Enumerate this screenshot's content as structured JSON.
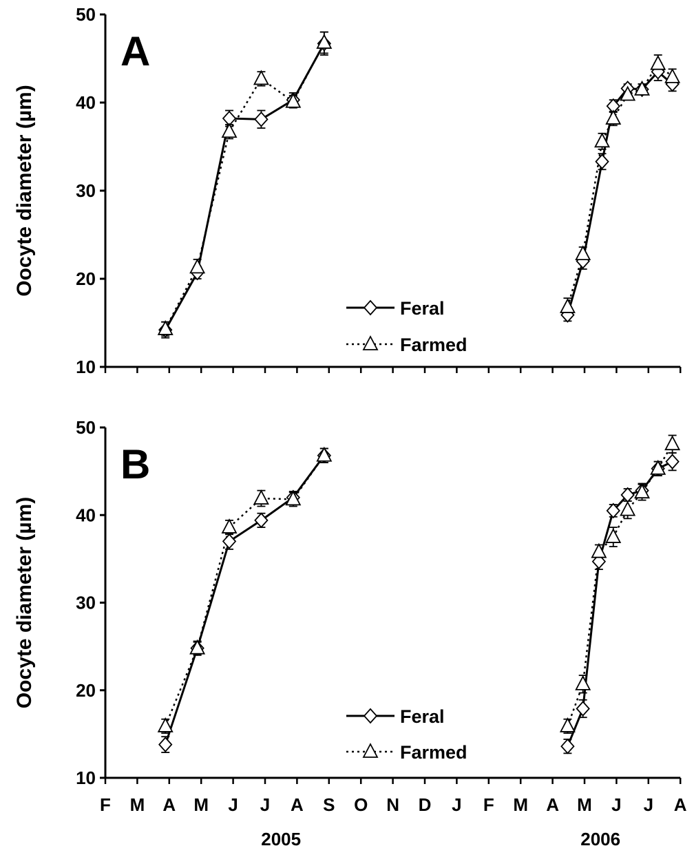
{
  "chart_data": [
    {
      "type": "line",
      "panel": "A",
      "ylabel": "Oocyte diameter (µm)",
      "ylim": [
        10,
        50
      ],
      "yticks": [
        "10",
        "20",
        "30",
        "40",
        "50"
      ],
      "month_labels": [
        "F",
        "M",
        "A",
        "M",
        "J",
        "J",
        "A",
        "S",
        "O",
        "N",
        "D",
        "J",
        "F",
        "M",
        "A",
        "M",
        "J",
        "J",
        "A"
      ],
      "year_labels": [
        {
          "label": "2005",
          "month_index": 5.5
        },
        {
          "label": "2006",
          "month_index": 15.5
        }
      ],
      "legend": {
        "placement": "center-bottom",
        "entries": [
          "Feral",
          "Farmed"
        ]
      },
      "series": [
        {
          "name": "Feral",
          "style": "solid",
          "marker": "diamond",
          "segments": [
            [
              [
                1.88,
                14.2
              ],
              [
                2.88,
                20.7
              ],
              [
                3.88,
                38.2
              ],
              [
                4.88,
                38.1
              ],
              [
                5.88,
                40.3
              ],
              [
                6.85,
                46.7
              ]
            ],
            [
              [
                14.47,
                15.9
              ],
              [
                14.95,
                22.0
              ],
              [
                15.55,
                33.3
              ],
              [
                15.9,
                39.6
              ],
              [
                16.35,
                41.6
              ],
              [
                16.8,
                41.5
              ],
              [
                17.3,
                43.5
              ],
              [
                17.75,
                42.1
              ]
            ]
          ],
          "errors": [
            [
              0.9,
              0.7,
              0.9,
              1.0,
              0.8,
              1.3
            ],
            [
              0.7,
              0.9,
              0.9,
              0.7,
              0.5,
              0.6,
              1.0,
              0.8
            ]
          ]
        },
        {
          "name": "Farmed",
          "style": "dotted",
          "marker": "triangle",
          "segments": [
            [
              [
                1.88,
                14.3
              ],
              [
                2.88,
                21.3
              ],
              [
                3.88,
                36.7
              ],
              [
                4.88,
                42.7
              ],
              [
                5.88,
                40.1
              ],
              [
                6.85,
                46.8
              ]
            ],
            [
              [
                14.47,
                16.8
              ],
              [
                14.95,
                22.8
              ],
              [
                15.55,
                35.6
              ],
              [
                15.9,
                38.2
              ],
              [
                16.35,
                40.9
              ],
              [
                16.8,
                41.5
              ],
              [
                17.3,
                44.4
              ],
              [
                17.75,
                42.9
              ]
            ]
          ],
          "errors": [
            [
              0.8,
              0.9,
              0.8,
              0.8,
              0.7,
              1.2
            ],
            [
              1.0,
              0.8,
              0.9,
              0.8,
              0.6,
              0.6,
              1.0,
              0.9
            ]
          ]
        }
      ]
    },
    {
      "type": "line",
      "panel": "B",
      "ylabel": "Oocyte diameter (µm)",
      "ylim": [
        10,
        50
      ],
      "yticks": [
        "10",
        "20",
        "30",
        "40",
        "50"
      ],
      "month_labels": [
        "F",
        "M",
        "A",
        "M",
        "J",
        "J",
        "A",
        "S",
        "O",
        "N",
        "D",
        "J",
        "F",
        "M",
        "A",
        "M",
        "J",
        "J",
        "A"
      ],
      "year_labels": [
        {
          "label": "2005",
          "month_index": 5.5
        },
        {
          "label": "2006",
          "month_index": 15.5
        }
      ],
      "legend": {
        "placement": "center-bottom",
        "entries": [
          "Feral",
          "Farmed"
        ]
      },
      "series": [
        {
          "name": "Feral",
          "style": "solid",
          "marker": "diamond",
          "segments": [
            [
              [
                1.88,
                13.8
              ],
              [
                2.88,
                24.8
              ],
              [
                3.88,
                37.0
              ],
              [
                4.88,
                39.4
              ],
              [
                5.88,
                42.0
              ],
              [
                6.85,
                46.8
              ]
            ],
            [
              [
                14.47,
                13.6
              ],
              [
                14.95,
                17.9
              ],
              [
                15.45,
                34.7
              ],
              [
                15.9,
                40.5
              ],
              [
                16.35,
                42.3
              ],
              [
                16.8,
                42.8
              ],
              [
                17.3,
                45.3
              ],
              [
                17.75,
                46.1
              ]
            ]
          ],
          "errors": [
            [
              0.9,
              0.7,
              0.9,
              0.8,
              0.7,
              0.8
            ],
            [
              0.8,
              1.0,
              0.9,
              0.7,
              0.7,
              0.8,
              0.8,
              1.0
            ]
          ]
        },
        {
          "name": "Farmed",
          "style": "dotted",
          "marker": "triangle",
          "segments": [
            [
              [
                1.88,
                15.9
              ],
              [
                2.88,
                24.8
              ],
              [
                3.88,
                38.6
              ],
              [
                4.88,
                41.9
              ],
              [
                5.88,
                41.8
              ],
              [
                6.85,
                46.8
              ]
            ],
            [
              [
                14.47,
                15.9
              ],
              [
                14.95,
                20.7
              ],
              [
                15.45,
                35.8
              ],
              [
                15.9,
                37.5
              ],
              [
                16.35,
                40.6
              ],
              [
                16.8,
                42.6
              ],
              [
                17.3,
                45.3
              ],
              [
                17.75,
                48.1
              ]
            ]
          ],
          "errors": [
            [
              0.8,
              0.8,
              0.8,
              0.9,
              0.8,
              0.8
            ],
            [
              0.8,
              1.0,
              0.8,
              1.1,
              1.0,
              0.9,
              0.8,
              1.0
            ]
          ]
        }
      ]
    }
  ]
}
